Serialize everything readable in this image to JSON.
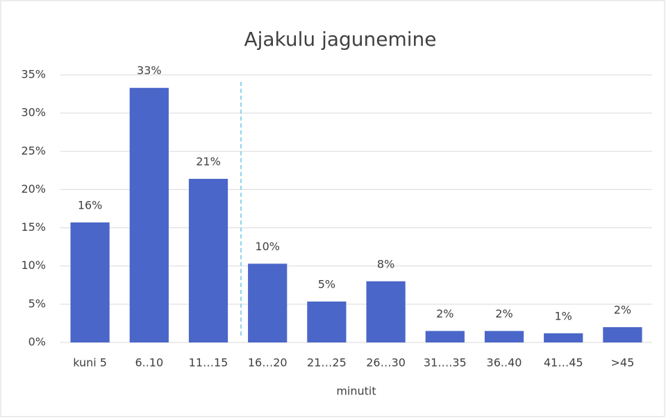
{
  "chart_data": {
    "type": "bar",
    "title": "Ajakulu jagunemine",
    "x_label": "minutit",
    "categories": [
      "kuni 5",
      "6..10",
      "11…15",
      "16…20",
      "21…25",
      "26…30",
      "31….35",
      "36..40",
      "41…45",
      ">45"
    ],
    "values": [
      15.7,
      33.3,
      21.4,
      10.3,
      5.35,
      8.0,
      1.5,
      1.5,
      1.2,
      2.0
    ],
    "value_labels": [
      "16%",
      "33%",
      "21%",
      "10%",
      "5%",
      "8%",
      "2%",
      "2%",
      "1%",
      "2%"
    ],
    "color": "#4a66c8",
    "ylim": [
      0,
      35
    ],
    "yticks": [
      {
        "value": 0,
        "label": "0%"
      },
      {
        "value": 5,
        "label": "5%"
      },
      {
        "value": 10,
        "label": "10%"
      },
      {
        "value": 15,
        "label": "15%"
      },
      {
        "value": 20,
        "label": "20%"
      },
      {
        "value": 25,
        "label": "25%"
      },
      {
        "value": 30,
        "label": "30%"
      },
      {
        "value": 35,
        "label": "35%"
      }
    ],
    "grid": true
  }
}
